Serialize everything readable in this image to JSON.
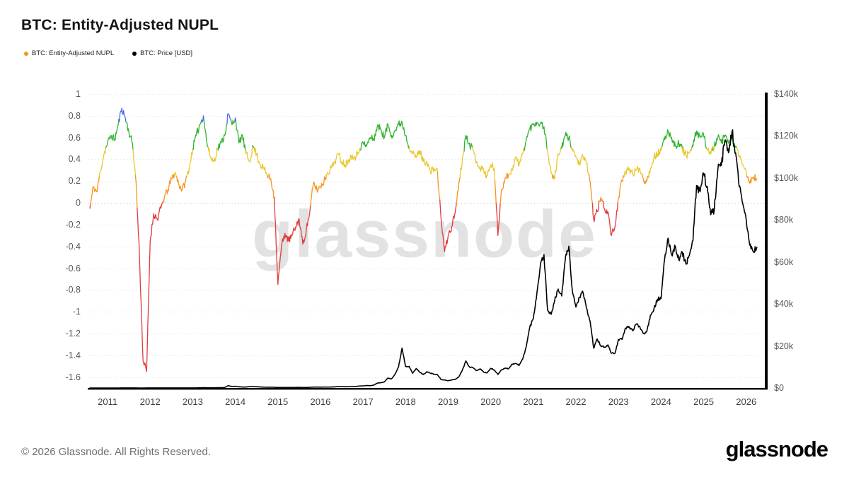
{
  "page": {
    "title": "BTC: Entity-Adjusted NUPL",
    "watermark": "glassnode",
    "footer": {
      "copyright": "© 2026 Glassnode. All Rights Reserved.",
      "logo": "glassnode"
    }
  },
  "legend": {
    "items": [
      {
        "label": "BTC: Entity-Adjusted NUPL",
        "color": "#f7941e"
      },
      {
        "label": "BTC: Price [USD]",
        "color": "#000000"
      }
    ]
  },
  "chart_data": {
    "type": "line",
    "title": "BTC: Entity-Adjusted NUPL",
    "x": {
      "start_decimal_year": 2010.5833,
      "step_months": 1,
      "range": [
        2010.55,
        2026.42
      ],
      "tick_years": [
        2011,
        2012,
        2013,
        2014,
        2015,
        2016,
        2017,
        2018,
        2019,
        2020,
        2021,
        2022,
        2023,
        2024,
        2025,
        2026
      ]
    },
    "axes": {
      "left": {
        "range": [
          -1.7,
          1.0
        ],
        "ticks": [
          {
            "v": 1,
            "label": "1"
          },
          {
            "v": 0.8,
            "label": "0.8"
          },
          {
            "v": 0.6,
            "label": "0.6"
          },
          {
            "v": 0.4,
            "label": "0.4"
          },
          {
            "v": 0.2,
            "label": "0.2"
          },
          {
            "v": 0,
            "label": "0"
          },
          {
            "v": -0.2,
            "label": "-0.2"
          },
          {
            "v": -0.4,
            "label": "-0.4"
          },
          {
            "v": -0.6,
            "label": "-0.6"
          },
          {
            "v": -0.8,
            "label": "-0.8"
          },
          {
            "v": -1,
            "label": "-1"
          },
          {
            "v": -1.2,
            "label": "-1.2"
          },
          {
            "v": -1.4,
            "label": "-1.4"
          },
          {
            "v": -1.6,
            "label": "-1.6"
          }
        ]
      },
      "right": {
        "range": [
          0,
          140000
        ],
        "ticks": [
          {
            "v": 140000,
            "label": "$140k"
          },
          {
            "v": 120000,
            "label": "$120k"
          },
          {
            "v": 100000,
            "label": "$100k"
          },
          {
            "v": 80000,
            "label": "$80k"
          },
          {
            "v": 60000,
            "label": "$60k"
          },
          {
            "v": 40000,
            "label": "$40k"
          },
          {
            "v": 20000,
            "label": "$20k"
          },
          {
            "v": 0,
            "label": "$0"
          }
        ]
      }
    },
    "grid": {
      "dotted": true,
      "color": "#e7e7e7",
      "emphasis_values": [
        0.5,
        0
      ],
      "emphasis_color": "#c9c9c9"
    },
    "nupl_bands": [
      {
        "min": 0.75,
        "color": "#4a6fe3"
      },
      {
        "min": 0.5,
        "color": "#2fb32f"
      },
      {
        "min": 0.25,
        "color": "#e9c832"
      },
      {
        "min": 0,
        "color": "#f7941e"
      },
      {
        "min": -99,
        "color": "#e23b3b"
      }
    ],
    "noise": {
      "seed": 11,
      "subdivisions": 6,
      "nupl_amp": 0.035,
      "price_amp_frac": 0.022
    },
    "series": [
      {
        "name": "BTC: Entity-Adjusted NUPL",
        "axis": "left",
        "style": "multicolor-by-band",
        "line_width": 1.3,
        "values": [
          -0.05,
          0.15,
          0.1,
          0.3,
          0.45,
          0.55,
          0.62,
          0.58,
          0.72,
          0.87,
          0.78,
          0.65,
          0.55,
          0.2,
          -0.5,
          -1.45,
          -1.55,
          -0.35,
          -0.1,
          -0.15,
          -0.05,
          0.05,
          0.12,
          0.22,
          0.28,
          0.18,
          0.12,
          0.2,
          0.32,
          0.5,
          0.62,
          0.72,
          0.8,
          0.55,
          0.42,
          0.38,
          0.5,
          0.55,
          0.62,
          0.82,
          0.72,
          0.78,
          0.55,
          0.62,
          0.45,
          0.38,
          0.52,
          0.45,
          0.35,
          0.32,
          0.25,
          0.22,
          0.05,
          -0.75,
          -0.4,
          -0.28,
          -0.35,
          -0.3,
          -0.22,
          -0.15,
          -0.38,
          -0.25,
          -0.08,
          0.18,
          0.12,
          0.15,
          0.2,
          0.28,
          0.32,
          0.38,
          0.45,
          0.38,
          0.35,
          0.4,
          0.44,
          0.42,
          0.5,
          0.55,
          0.52,
          0.6,
          0.58,
          0.7,
          0.68,
          0.6,
          0.72,
          0.62,
          0.66,
          0.72,
          0.74,
          0.62,
          0.52,
          0.45,
          0.42,
          0.48,
          0.38,
          0.38,
          0.28,
          0.32,
          0.28,
          -0.15,
          -0.45,
          -0.3,
          -0.22,
          -0.08,
          0.18,
          0.4,
          0.62,
          0.55,
          0.48,
          0.38,
          0.32,
          0.3,
          0.25,
          0.35,
          0.32,
          -0.3,
          0.12,
          0.22,
          0.26,
          0.3,
          0.42,
          0.35,
          0.45,
          0.58,
          0.68,
          0.72,
          0.74,
          0.73,
          0.7,
          0.48,
          0.28,
          0.22,
          0.45,
          0.5,
          0.62,
          0.6,
          0.5,
          0.42,
          0.36,
          0.42,
          0.36,
          0.2,
          -0.15,
          -0.08,
          0.05,
          -0.05,
          -0.08,
          -0.3,
          -0.22,
          0.05,
          0.2,
          0.28,
          0.32,
          0.26,
          0.3,
          0.32,
          0.22,
          0.2,
          0.32,
          0.42,
          0.45,
          0.48,
          0.58,
          0.66,
          0.6,
          0.52,
          0.55,
          0.5,
          0.44,
          0.46,
          0.52,
          0.66,
          0.6,
          0.62,
          0.5,
          0.45,
          0.52,
          0.6,
          0.55,
          0.62,
          0.55,
          0.6,
          0.52,
          0.42,
          0.35,
          0.28,
          0.18,
          0.24,
          0.22
        ]
      },
      {
        "name": "BTC: Price [USD]",
        "axis": "right",
        "color": "#000000",
        "line_width": 1.6,
        "values": [
          0.06,
          0.06,
          0.1,
          0.2,
          0.3,
          0.4,
          0.9,
          0.9,
          1.5,
          8,
          16,
          13,
          10,
          5,
          3.3,
          3,
          4.7,
          5.3,
          4.9,
          4.9,
          5,
          5.1,
          6.7,
          9.4,
          10,
          12.4,
          11.2,
          12.4,
          13.5,
          20,
          33,
          93,
          139,
          128,
          97,
          98,
          135,
          133,
          204,
          1100,
          730,
          800,
          550,
          450,
          450,
          620,
          640,
          580,
          480,
          390,
          340,
          375,
          320,
          215,
          255,
          245,
          235,
          230,
          260,
          285,
          230,
          235,
          310,
          375,
          430,
          370,
          437,
          415,
          450,
          530,
          670,
          655,
          575,
          610,
          700,
          745,
          960,
          970,
          1180,
          1080,
          1350,
          2300,
          2500,
          2875,
          4700,
          4340,
          6450,
          10000,
          19000,
          10200,
          10300,
          7000,
          9250,
          7500,
          6400,
          7750,
          7000,
          6600,
          6300,
          4000,
          3750,
          3450,
          3850,
          4100,
          5300,
          8550,
          12900,
          10000,
          9600,
          8300,
          9150,
          7550,
          7200,
          9350,
          8550,
          6450,
          8650,
          9450,
          9150,
          11350,
          11650,
          10800,
          13800,
          19700,
          29000,
          33100,
          45200,
          58800,
          63500,
          37300,
          35000,
          41500,
          47100,
          43800,
          61300,
          67500,
          46200,
          38500,
          43200,
          45500,
          37700,
          31800,
          19000,
          23300,
          20000,
          19400,
          20500,
          16500,
          16500,
          23100,
          23100,
          28500,
          29200,
          27200,
          30500,
          29200,
          26000,
          27000,
          34700,
          37700,
          42300,
          42600,
          61200,
          71300,
          63500,
          67500,
          61000,
          64600,
          59000,
          63300,
          70200,
          96400,
          93400,
          102000,
          96000,
          82500,
          85000,
          104000,
          106000,
          118000,
          112000,
          122000,
          112000,
          96000,
          88000,
          80000,
          68000,
          65000,
          67000
        ]
      }
    ]
  }
}
